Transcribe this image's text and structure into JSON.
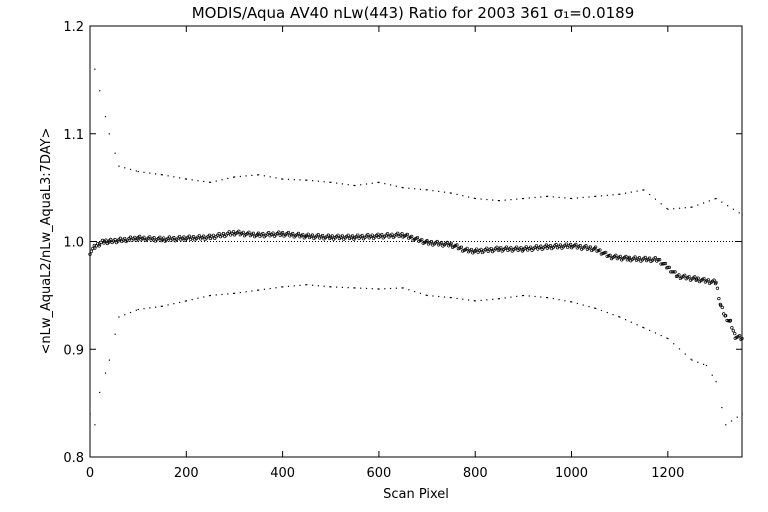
{
  "chart_data": {
    "type": "scatter",
    "title": "MODIS/Aqua AV40 nLw(443) Ratio for 2003 361 σ₁=0.0189",
    "xlabel": "Scan Pixel",
    "ylabel": "<nLw_AquaL2/nLw_AquaL3:7DAY>",
    "xlim": [
      0,
      1354
    ],
    "ylim": [
      0.8,
      1.2
    ],
    "x_ticks": [
      "0",
      "200",
      "400",
      "600",
      "800",
      "1000",
      "1200"
    ],
    "x_tick_values": [
      0,
      200,
      400,
      600,
      800,
      1000,
      1200
    ],
    "y_ticks": [
      "0.8",
      "0.9",
      "1.0",
      "1.1",
      "1.2"
    ],
    "y_tick_values": [
      0.8,
      0.9,
      1.0,
      1.1,
      1.2
    ],
    "reference_line": 1.0,
    "grid": false,
    "series": [
      {
        "role": "mean",
        "points": [
          [
            0,
            0.99
          ],
          [
            10,
            0.995
          ],
          [
            20,
            0.998
          ],
          [
            30,
            1.0
          ],
          [
            40,
            1.0
          ],
          [
            60,
            1.001
          ],
          [
            100,
            1.003
          ],
          [
            150,
            1.002
          ],
          [
            200,
            1.003
          ],
          [
            250,
            1.004
          ],
          [
            300,
            1.008
          ],
          [
            350,
            1.006
          ],
          [
            400,
            1.007
          ],
          [
            450,
            1.005
          ],
          [
            500,
            1.004
          ],
          [
            550,
            1.004
          ],
          [
            600,
            1.005
          ],
          [
            650,
            1.006
          ],
          [
            700,
            0.999
          ],
          [
            750,
            0.997
          ],
          [
            780,
            0.992
          ],
          [
            800,
            0.991
          ],
          [
            850,
            0.993
          ],
          [
            900,
            0.993
          ],
          [
            950,
            0.995
          ],
          [
            1000,
            0.996
          ],
          [
            1050,
            0.993
          ],
          [
            1080,
            0.986
          ],
          [
            1120,
            0.984
          ],
          [
            1180,
            0.983
          ],
          [
            1200,
            0.976
          ],
          [
            1220,
            0.968
          ],
          [
            1260,
            0.965
          ],
          [
            1300,
            0.962
          ],
          [
            1310,
            0.94
          ],
          [
            1320,
            0.93
          ],
          [
            1330,
            0.925
          ],
          [
            1340,
            0.912
          ],
          [
            1354,
            0.91
          ]
        ]
      },
      {
        "role": "upper",
        "points": [
          [
            0,
            1.2
          ],
          [
            10,
            1.16
          ],
          [
            20,
            1.14
          ],
          [
            40,
            1.1
          ],
          [
            60,
            1.07
          ],
          [
            100,
            1.065
          ],
          [
            150,
            1.062
          ],
          [
            200,
            1.058
          ],
          [
            250,
            1.055
          ],
          [
            300,
            1.06
          ],
          [
            350,
            1.062
          ],
          [
            400,
            1.058
          ],
          [
            450,
            1.057
          ],
          [
            500,
            1.055
          ],
          [
            550,
            1.052
          ],
          [
            600,
            1.055
          ],
          [
            650,
            1.05
          ],
          [
            700,
            1.048
          ],
          [
            750,
            1.045
          ],
          [
            800,
            1.04
          ],
          [
            850,
            1.038
          ],
          [
            900,
            1.04
          ],
          [
            950,
            1.042
          ],
          [
            1000,
            1.04
          ],
          [
            1050,
            1.042
          ],
          [
            1100,
            1.044
          ],
          [
            1150,
            1.048
          ],
          [
            1200,
            1.03
          ],
          [
            1250,
            1.032
          ],
          [
            1300,
            1.04
          ],
          [
            1354,
            1.025
          ]
        ]
      },
      {
        "role": "lower",
        "points": [
          [
            0,
            0.84
          ],
          [
            10,
            0.83
          ],
          [
            20,
            0.86
          ],
          [
            40,
            0.89
          ],
          [
            60,
            0.93
          ],
          [
            100,
            0.937
          ],
          [
            150,
            0.94
          ],
          [
            200,
            0.945
          ],
          [
            250,
            0.95
          ],
          [
            300,
            0.952
          ],
          [
            350,
            0.955
          ],
          [
            400,
            0.958
          ],
          [
            450,
            0.96
          ],
          [
            500,
            0.958
          ],
          [
            550,
            0.957
          ],
          [
            600,
            0.956
          ],
          [
            650,
            0.957
          ],
          [
            700,
            0.95
          ],
          [
            750,
            0.948
          ],
          [
            800,
            0.945
          ],
          [
            850,
            0.947
          ],
          [
            900,
            0.95
          ],
          [
            950,
            0.948
          ],
          [
            1000,
            0.944
          ],
          [
            1050,
            0.938
          ],
          [
            1100,
            0.93
          ],
          [
            1150,
            0.92
          ],
          [
            1200,
            0.91
          ],
          [
            1250,
            0.89
          ],
          [
            1280,
            0.885
          ],
          [
            1300,
            0.87
          ],
          [
            1320,
            0.83
          ],
          [
            1354,
            0.84
          ]
        ]
      }
    ]
  }
}
